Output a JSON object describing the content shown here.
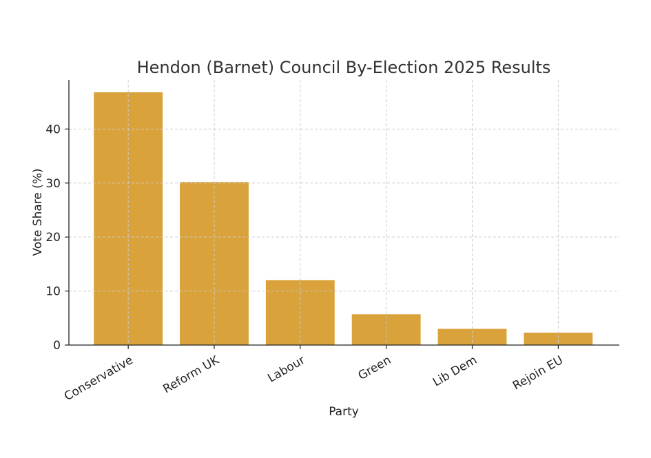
{
  "chart_data": {
    "type": "bar",
    "title": "Hendon (Barnet) Council By-Election 2025 Results",
    "xlabel": "Party",
    "ylabel": "Vote Share (%)",
    "categories": [
      "Conservative",
      "Reform UK",
      "Labour",
      "Green",
      "Lib Dem",
      "Rejoin EU"
    ],
    "values": [
      46.8,
      30.2,
      12.0,
      5.7,
      3.0,
      2.3
    ],
    "ylim": [
      0,
      49.1
    ],
    "yticks": [
      0,
      10,
      20,
      30,
      40
    ],
    "grid": true,
    "bar_color": "#d9a23a"
  }
}
